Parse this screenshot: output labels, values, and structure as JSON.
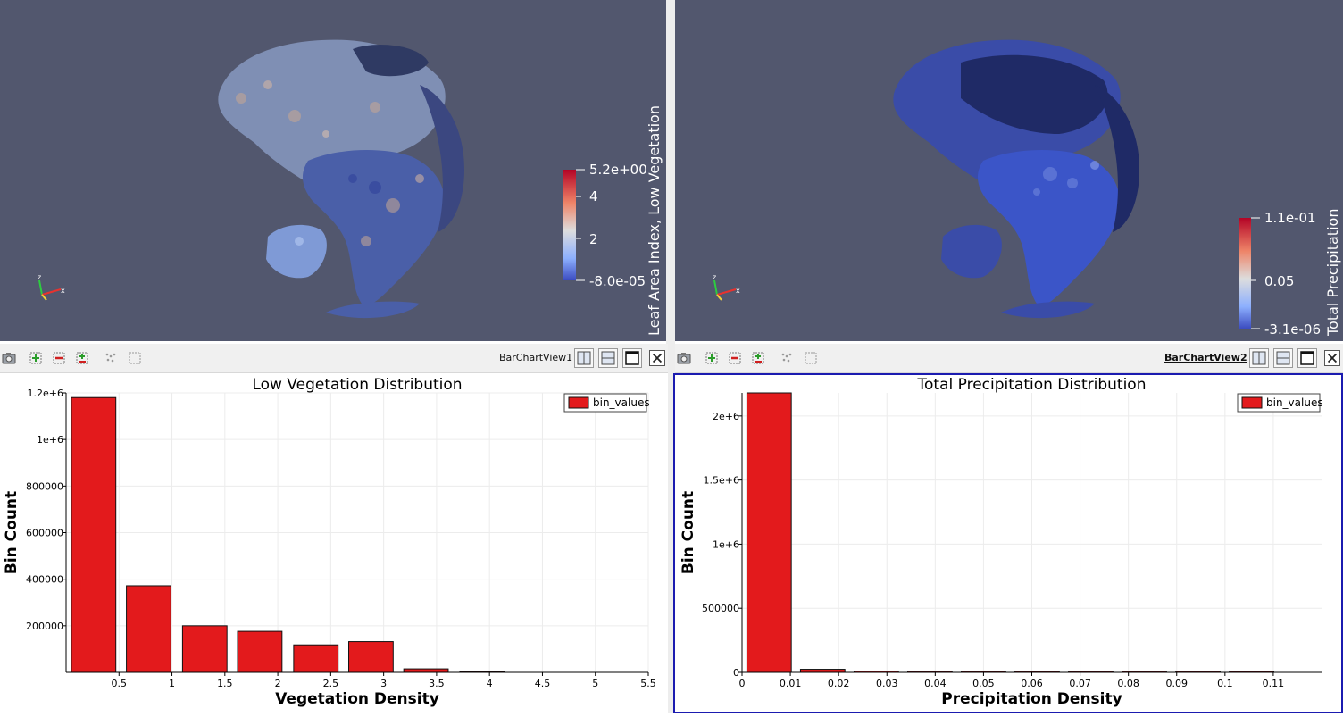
{
  "render_view_1": {
    "colorbar": {
      "title": "Leaf Area Index, Low Vegetation",
      "max": "5.2e+00",
      "tick_high": "4",
      "tick_mid": "2",
      "min": "-8.0e-05"
    },
    "axes": {
      "z": "z",
      "x": "x"
    }
  },
  "render_view_2": {
    "colorbar": {
      "title": "Total Precipitation",
      "max": "1.1e-01",
      "tick_mid": "0.05",
      "min": "-3.1e-06"
    },
    "axes": {
      "z": "z",
      "x": "x"
    }
  },
  "toolbar_1": {
    "view_name": "BarChartView1",
    "icons": [
      "camera-icon",
      "zoom-in-icon",
      "zoom-out-icon",
      "zoom-add-icon",
      "select-points-icon",
      "select-area-icon"
    ],
    "layout_icons": [
      "split-horizontal-icon",
      "split-vertical-icon",
      "maximize-icon",
      "close-icon"
    ]
  },
  "toolbar_2": {
    "view_name": "BarChartView2",
    "active": true,
    "icons": [
      "camera-icon",
      "zoom-in-icon",
      "zoom-out-icon",
      "zoom-add-icon",
      "select-points-icon",
      "select-area-icon"
    ],
    "layout_icons": [
      "split-horizontal-icon",
      "split-vertical-icon",
      "maximize-icon",
      "close-icon"
    ]
  },
  "colors": {
    "render_bg": "#52576e",
    "bar_fill": "#e31a1c",
    "active_border": "#1b1bb0",
    "colormap_high": "#b40426",
    "colormap_mid": "#dddddd",
    "colormap_low": "#3b4cc0"
  },
  "chart_data": [
    {
      "type": "bar",
      "title": "Low Vegetation Distribution",
      "xlabel": "Vegetation Density",
      "ylabel": "Bin Count",
      "legend": "bin_values",
      "legend_position": "top-right",
      "grid": true,
      "xlim": [
        0,
        5.5
      ],
      "ylim": [
        0,
        1200000
      ],
      "bar_width": 0.42,
      "x": [
        0.26,
        0.78,
        1.31,
        1.83,
        2.36,
        2.88,
        3.4,
        3.93
      ],
      "values": [
        1180000,
        372000,
        200000,
        176000,
        118000,
        132000,
        15000,
        4000
      ],
      "xticks": [
        0.5,
        1,
        1.5,
        2,
        2.5,
        3,
        3.5,
        4,
        4.5,
        5,
        5.5
      ],
      "xtick_labels": [
        "0.5",
        "1",
        "1.5",
        "2",
        "2.5",
        "3",
        "3.5",
        "4",
        "4.5",
        "5",
        "5.5"
      ],
      "yticks": [
        200000,
        400000,
        600000,
        800000,
        1000000,
        1200000
      ],
      "ytick_labels": [
        "200000",
        "400000",
        "600000",
        "800000",
        "1e+6",
        "1.2e+6"
      ]
    },
    {
      "type": "bar",
      "title": "Total Precipitation Distribution",
      "xlabel": "Precipitation Density",
      "ylabel": "Bin Count",
      "legend": "bin_values",
      "legend_position": "top-right",
      "grid": true,
      "xlim": [
        0,
        0.12
      ],
      "ylim": [
        0,
        2180000
      ],
      "bar_width": 0.0092,
      "x": [
        0.0056,
        0.0167,
        0.0278,
        0.0389,
        0.05,
        0.0611,
        0.0722,
        0.0833,
        0.0944,
        0.1055
      ],
      "values": [
        2180000,
        24000,
        9000,
        8000,
        8000,
        8000,
        8000,
        8000,
        8000,
        8000
      ],
      "xticks": [
        0,
        0.01,
        0.02,
        0.03,
        0.04,
        0.05,
        0.06,
        0.07,
        0.08,
        0.09,
        0.1,
        0.11
      ],
      "xtick_labels": [
        "0",
        "0.01",
        "0.02",
        "0.03",
        "0.04",
        "0.05",
        "0.06",
        "0.07",
        "0.08",
        "0.09",
        "0.1",
        "0.11"
      ],
      "yticks": [
        0,
        500000,
        1000000,
        1500000,
        2000000
      ],
      "ytick_labels": [
        "0",
        "500000",
        "1e+6",
        "1.5e+6",
        "2e+6"
      ]
    }
  ]
}
